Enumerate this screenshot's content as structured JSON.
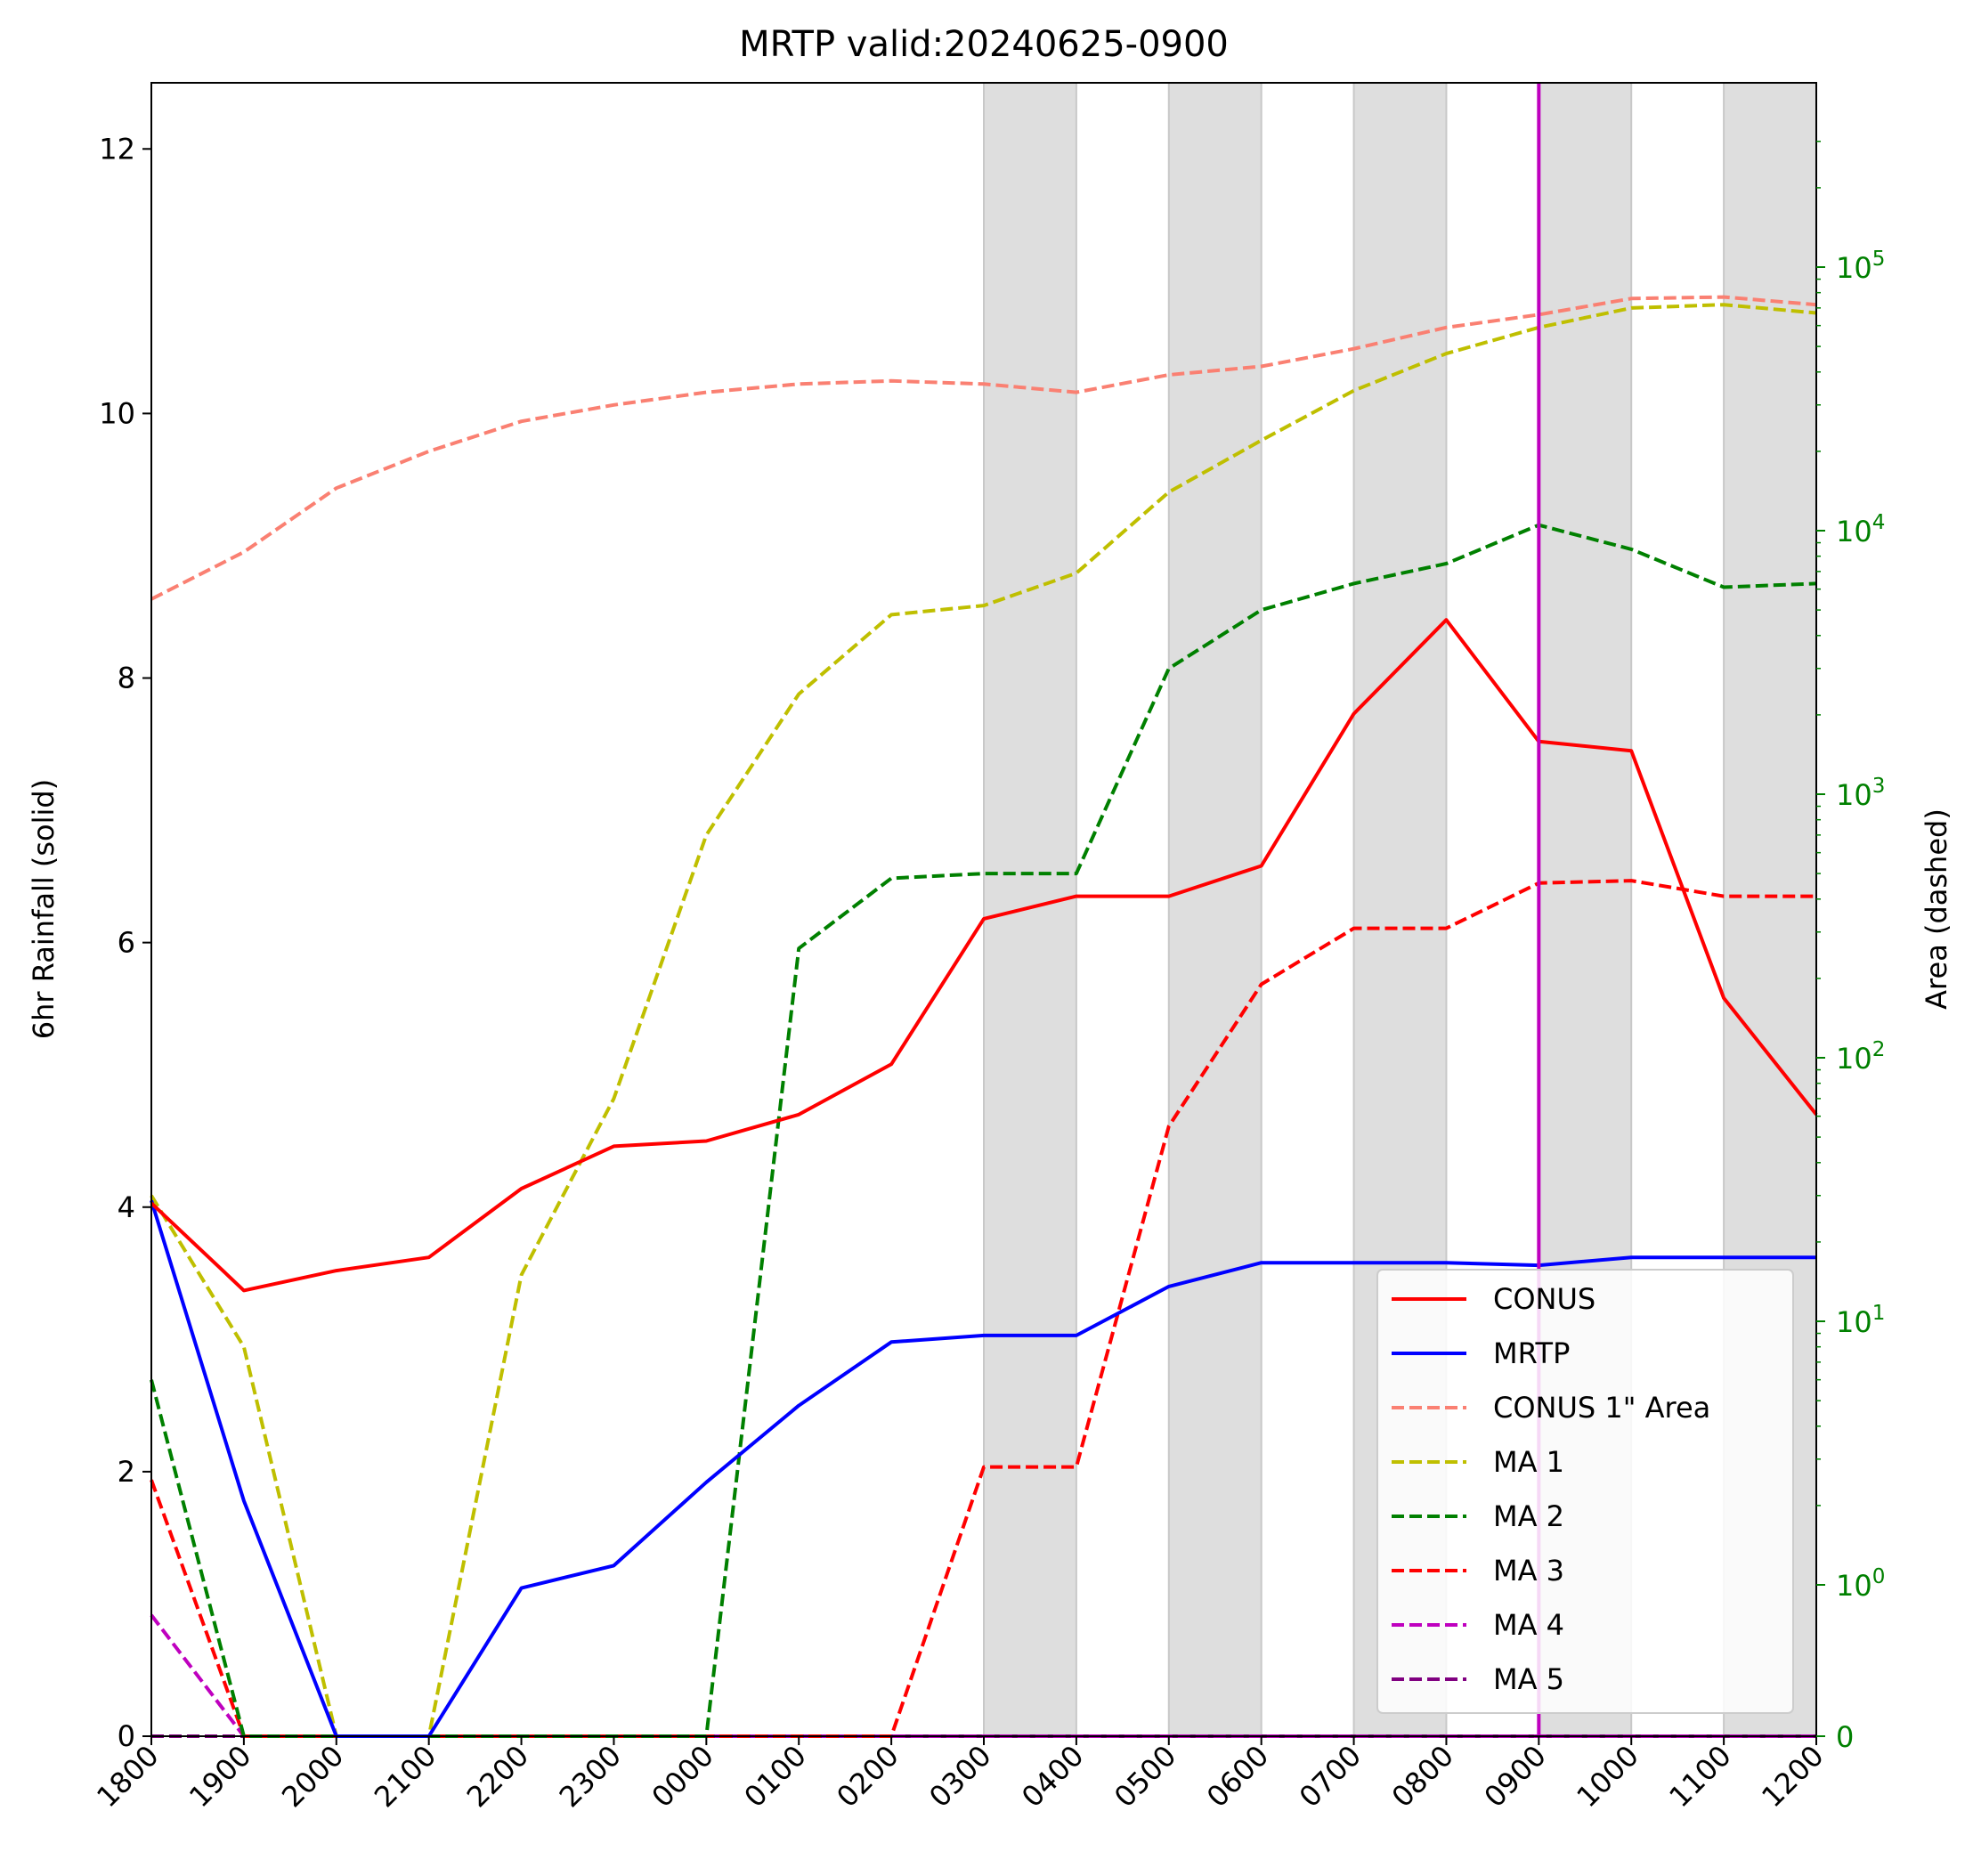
{
  "chart_data": {
    "type": "line",
    "title": "MRTP valid:20240625-0900",
    "ylabel": "6hr Rainfall (solid)",
    "y2label": "Area (dashed)",
    "categories": [
      "1800",
      "1900",
      "2000",
      "2100",
      "2200",
      "2300",
      "0000",
      "0100",
      "0200",
      "0300",
      "0400",
      "0500",
      "0600",
      "0700",
      "0800",
      "0900",
      "1000",
      "1100",
      "1200"
    ],
    "ylim": [
      0,
      12.5
    ],
    "yticks": [
      "0",
      "2",
      "4",
      "6",
      "8",
      "10",
      "12"
    ],
    "y2_scale": "symlog",
    "y2_ticks": [
      {
        "value": 0,
        "base": "0",
        "exp": ""
      },
      {
        "value": 1,
        "base": "10",
        "exp": "0"
      },
      {
        "value": 10,
        "base": "10",
        "exp": "1"
      },
      {
        "value": 100,
        "base": "10",
        "exp": "2"
      },
      {
        "value": 1000,
        "base": "10",
        "exp": "3"
      },
      {
        "value": 10000,
        "base": "10",
        "exp": "4"
      },
      {
        "value": 100000,
        "base": "10",
        "exp": "5"
      }
    ],
    "y2_tick_color": "#008000",
    "shaded_bands": [
      [
        "0300",
        "0400"
      ],
      [
        "0500",
        "0600"
      ],
      [
        "0700",
        "0800"
      ],
      [
        "0900",
        "1000"
      ],
      [
        "1100",
        "1200"
      ]
    ],
    "valid_time_marker": {
      "x": "0900",
      "color": "#bf00bf"
    },
    "grid": false,
    "legend_position": "lower-right",
    "series": [
      {
        "name": "CONUS",
        "axis": "left",
        "style": "solid",
        "color": "#ff0000",
        "values": [
          4.03,
          3.37,
          3.52,
          3.62,
          4.14,
          4.46,
          4.5,
          4.7,
          5.08,
          6.18,
          6.35,
          6.35,
          6.58,
          7.73,
          8.44,
          7.52,
          7.45,
          5.58,
          4.7
        ]
      },
      {
        "name": "MRTP",
        "axis": "left",
        "style": "solid",
        "color": "#0000ff",
        "values": [
          4.05,
          1.78,
          0,
          0,
          1.12,
          1.29,
          1.92,
          2.5,
          2.98,
          3.03,
          3.03,
          3.4,
          3.58,
          3.58,
          3.58,
          3.56,
          3.62,
          3.62,
          3.62
        ]
      },
      {
        "name": "CONUS 1\" Area",
        "axis": "right",
        "style": "dashed",
        "color": "#fa8072",
        "values": [
          5500,
          8300,
          14500,
          20000,
          26000,
          30000,
          33500,
          36000,
          37000,
          36000,
          33500,
          39000,
          42000,
          49000,
          59000,
          66000,
          76000,
          77000,
          72000
        ]
      },
      {
        "name": "MA 1",
        "axis": "right",
        "style": "dashed",
        "color": "#bfbf00",
        "values": [
          30,
          8,
          0,
          0,
          15,
          70,
          700,
          2400,
          4800,
          5200,
          6900,
          14000,
          22000,
          34000,
          47000,
          59000,
          70000,
          72000,
          67000
        ]
      },
      {
        "name": "MA 2",
        "axis": "right",
        "style": "dashed",
        "color": "#008000",
        "values": [
          6,
          0,
          0,
          0,
          0,
          0,
          0,
          260,
          480,
          500,
          500,
          3000,
          5000,
          6300,
          7500,
          10500,
          8500,
          6100,
          6300
        ]
      },
      {
        "name": "MA 3",
        "axis": "right",
        "style": "dashed",
        "color": "#ff0000",
        "values": [
          2.5,
          0,
          0,
          0,
          0,
          0,
          0,
          0,
          0,
          2.8,
          2.8,
          55,
          190,
          310,
          310,
          460,
          470,
          410,
          410
        ]
      },
      {
        "name": "MA 4",
        "axis": "right",
        "style": "dashed",
        "color": "#bf00bf",
        "values": [
          0.8,
          0,
          0,
          0,
          0,
          0,
          0,
          0,
          0,
          0,
          0,
          0,
          0,
          0,
          0,
          0,
          0,
          0,
          0
        ]
      },
      {
        "name": "MA 5",
        "axis": "right",
        "style": "dashed",
        "color": "#800080",
        "values": [
          0,
          0,
          0,
          0,
          0,
          0,
          0,
          0,
          0,
          0,
          0,
          0,
          0,
          0,
          0,
          0,
          0,
          0,
          0
        ]
      }
    ]
  }
}
